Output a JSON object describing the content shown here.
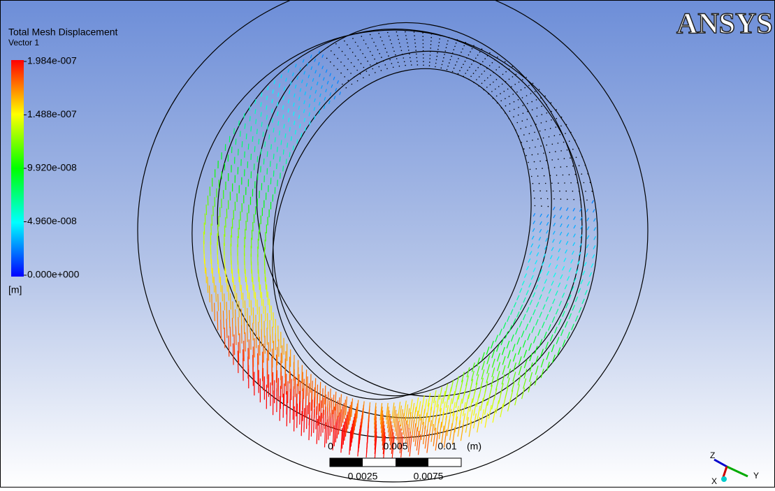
{
  "legend": {
    "title": "Total Mesh Displacement",
    "subtitle": "Vector 1",
    "labels": [
      "1.984e-007",
      "1.488e-007",
      "9.920e-008",
      "4.960e-008",
      "0.000e+000"
    ],
    "unit": "[m]"
  },
  "logo": "ANSYS",
  "scale_bar": {
    "top_labels": [
      "0",
      "0.005",
      "0.01"
    ],
    "unit": "(m)",
    "bottom_labels": [
      "0.0025",
      "0.0075"
    ]
  },
  "triad": {
    "z": "Z",
    "y": "Y",
    "x": "X"
  }
}
